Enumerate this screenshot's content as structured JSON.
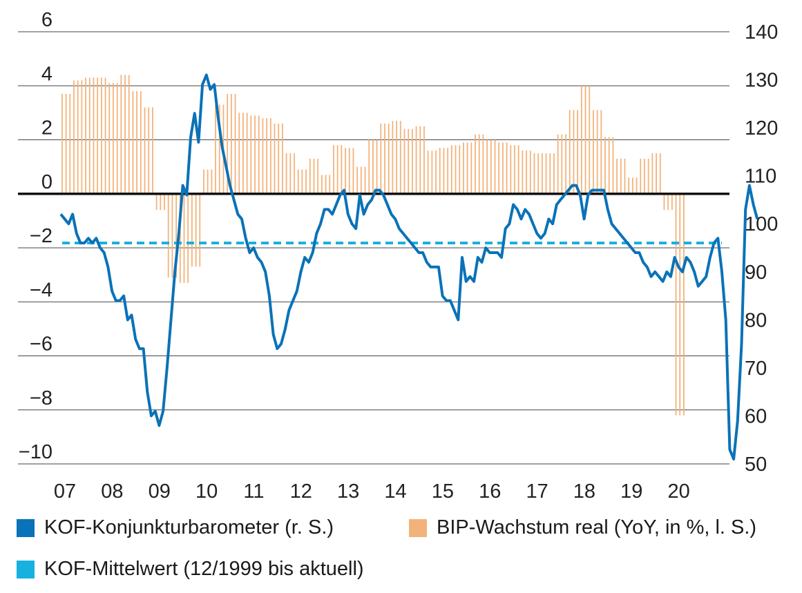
{
  "chart_data": {
    "type": "bar+line",
    "colors": {
      "gdp": "#f2b37b",
      "kof": "#0a72b8",
      "mean": "#17b1e0",
      "zero": "#111111",
      "grid": "#444444"
    },
    "left_axis": {
      "ylim": [
        -10,
        6
      ],
      "ticks": [
        "6",
        "4",
        "2",
        "0",
        "−2",
        "−4",
        "−6",
        "−8",
        "−10"
      ]
    },
    "right_axis": {
      "ylim": [
        50,
        140
      ],
      "ticks": [
        "140",
        "130",
        "120",
        "110",
        "100",
        "90",
        "80",
        "70",
        "60",
        "50"
      ]
    },
    "x_ticks": [
      "07",
      "08",
      "09",
      "10",
      "11",
      "12",
      "13",
      "14",
      "15",
      "16",
      "17",
      "18",
      "19",
      "20"
    ],
    "legend": {
      "kof": "KOF-Konjunkturbarometer (r. S.)",
      "gdp": "BIP-Wachstum real (YoY, in %, l. S.)",
      "mean": "KOF-Mittelwert (12/1999 bis aktuell)"
    },
    "kof_mean": 96,
    "gdp_series": {
      "name": "BIP-Wachstum real (YoY, in %, l. S.)",
      "start": "2007-01",
      "values": [
        3.7,
        4.2,
        4.3,
        4.3,
        4.1,
        4.4,
        3.8,
        3.2,
        -0.6,
        -3.1,
        -3.3,
        -2.7,
        0.9,
        3.3,
        3.7,
        3.0,
        2.9,
        2.8,
        2.6,
        1.5,
        0.9,
        1.3,
        0.7,
        1.8,
        1.7,
        1.0,
        2.0,
        2.6,
        2.7,
        2.4,
        2.5,
        1.6,
        1.7,
        1.8,
        1.9,
        2.2,
        2.0,
        1.9,
        1.8,
        1.6,
        1.5,
        1.5,
        2.2,
        3.1,
        4.0,
        3.1,
        2.1,
        1.3,
        0.6,
        1.3,
        1.5,
        -0.6,
        -8.2
      ]
    },
    "kof_series": {
      "name": "KOF-Konjunkturbarometer (r. S.)",
      "start": "2007-01",
      "values": [
        102,
        101,
        100,
        102,
        98,
        96,
        96,
        97,
        96,
        97,
        95,
        94,
        91,
        86,
        84,
        84,
        85,
        80,
        81,
        76,
        74,
        74,
        65,
        60,
        61,
        58,
        61,
        70,
        80,
        90,
        98,
        108,
        106,
        118,
        123,
        117,
        129,
        131,
        128,
        129,
        122,
        116,
        112,
        108,
        105,
        102,
        101,
        97,
        94,
        95,
        93,
        92,
        90,
        85,
        77,
        74,
        75,
        78,
        82,
        84,
        86,
        90,
        93,
        92,
        94,
        98,
        100,
        103,
        103,
        102,
        104,
        106,
        107,
        102,
        100,
        99,
        106,
        102,
        104,
        105,
        107,
        107,
        106,
        104,
        102,
        101,
        99,
        98,
        97,
        96,
        95,
        94,
        94,
        92,
        91,
        91,
        91,
        85,
        84,
        84,
        82,
        80,
        93,
        88,
        89,
        88,
        93,
        92,
        95,
        94,
        94,
        94,
        93,
        99,
        100,
        104,
        103,
        101,
        103,
        102,
        100,
        98,
        97,
        98,
        101,
        100,
        104,
        105,
        106,
        107,
        108,
        108,
        106,
        101,
        106,
        107,
        107,
        107,
        107,
        103,
        100,
        99,
        98,
        97,
        96,
        95,
        94,
        94,
        92,
        91,
        89,
        90,
        89,
        88,
        90,
        89,
        93,
        91,
        90,
        93,
        92,
        90,
        87,
        88,
        89,
        93,
        96,
        97,
        90,
        80,
        53,
        51,
        59,
        75,
        103,
        108,
        104,
        101
      ]
    }
  }
}
